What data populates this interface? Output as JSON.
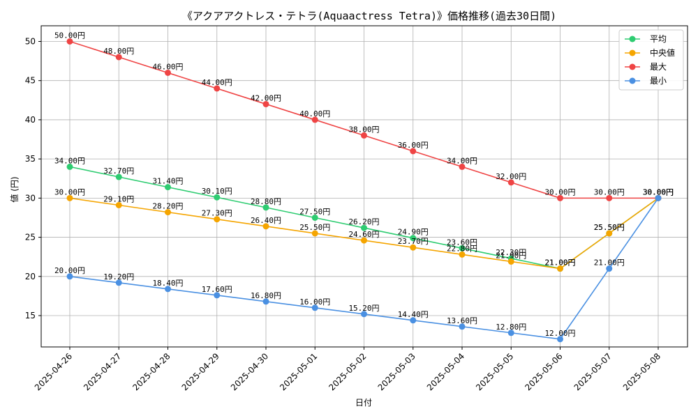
{
  "chart_data": {
    "type": "line",
    "title": "《アクアアクトレス・テトラ(Aquaactress Tetra)》価格推移(過去30日間)",
    "xlabel": "日付",
    "ylabel": "値 (円)",
    "ylim": [
      11,
      52
    ],
    "yticks": [
      15,
      20,
      25,
      30,
      35,
      40,
      45,
      50
    ],
    "grid": true,
    "legend_position": "top-right",
    "label_suffix": "円",
    "x": [
      "2025-04-26",
      "2025-04-27",
      "2025-04-28",
      "2025-04-29",
      "2025-04-30",
      "2025-05-01",
      "2025-05-02",
      "2025-05-03",
      "2025-05-04",
      "2025-05-05",
      "2025-05-06",
      "2025-05-07",
      "2025-05-08"
    ],
    "series": [
      {
        "name": "平均",
        "color": "#2ecc71",
        "values": [
          34.0,
          32.7,
          31.4,
          30.1,
          28.8,
          27.5,
          26.2,
          24.9,
          23.6,
          22.3,
          21.0,
          25.5,
          30.0
        ]
      },
      {
        "name": "中央値",
        "color": "#f5a500",
        "values": [
          30.0,
          29.1,
          28.2,
          27.3,
          26.4,
          25.5,
          24.6,
          23.7,
          22.8,
          21.9,
          21.0,
          25.5,
          30.0
        ]
      },
      {
        "name": "最大",
        "color": "#ef4444",
        "values": [
          50.0,
          48.0,
          46.0,
          44.0,
          42.0,
          40.0,
          38.0,
          36.0,
          34.0,
          32.0,
          30.0,
          30.0,
          30.0
        ]
      },
      {
        "name": "最小",
        "color": "#4a90e2",
        "values": [
          20.0,
          19.2,
          18.4,
          17.6,
          16.8,
          16.0,
          15.2,
          14.4,
          13.6,
          12.8,
          12.0,
          21.0,
          30.0
        ]
      }
    ]
  }
}
